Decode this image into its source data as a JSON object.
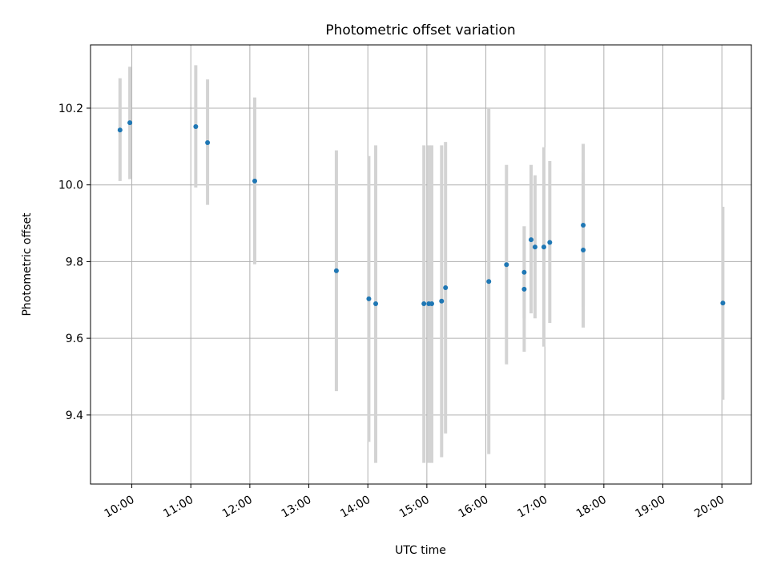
{
  "chart_data": {
    "type": "scatter",
    "title": "Photometric offset variation",
    "xlabel": "UTC time",
    "ylabel": "Photometric offset",
    "x_axis_type": "time",
    "xlim": [
      "09:18",
      "20:30"
    ],
    "ylim": [
      9.22,
      10.365
    ],
    "xticks": [
      "10:00",
      "11:00",
      "12:00",
      "13:00",
      "14:00",
      "15:00",
      "16:00",
      "17:00",
      "18:00",
      "19:00",
      "20:00"
    ],
    "yticks": [
      "9.4",
      "9.6",
      "9.8",
      "10.0",
      "10.2"
    ],
    "grid": true,
    "colors": {
      "point": "#1f77b4",
      "errorbar": "#d3d3d3",
      "grid": "#b0b0b0"
    },
    "points": [
      {
        "x": "09:48",
        "y": 10.143,
        "ylow": 10.01,
        "yhigh": 10.278
      },
      {
        "x": "09:58",
        "y": 10.162,
        "ylow": 10.015,
        "yhigh": 10.308
      },
      {
        "x": "11:05",
        "y": 10.152,
        "ylow": 9.993,
        "yhigh": 10.312
      },
      {
        "x": "11:17",
        "y": 10.11,
        "ylow": 9.948,
        "yhigh": 10.275
      },
      {
        "x": "12:05",
        "y": 10.01,
        "ylow": 9.793,
        "yhigh": 10.228
      },
      {
        "x": "13:28",
        "y": 9.776,
        "ylow": 9.462,
        "yhigh": 10.09
      },
      {
        "x": "14:01",
        "y": 9.703,
        "ylow": 9.33,
        "yhigh": 10.075
      },
      {
        "x": "14:08",
        "y": 9.69,
        "ylow": 9.275,
        "yhigh": 10.103
      },
      {
        "x": "14:57",
        "y": 9.69,
        "ylow": 9.275,
        "yhigh": 10.103
      },
      {
        "x": "15:02",
        "y": 9.69,
        "ylow": 9.275,
        "yhigh": 10.103
      },
      {
        "x": "15:05",
        "y": 9.69,
        "ylow": 9.275,
        "yhigh": 10.103
      },
      {
        "x": "15:15",
        "y": 9.697,
        "ylow": 9.29,
        "yhigh": 10.103
      },
      {
        "x": "15:19",
        "y": 9.732,
        "ylow": 9.352,
        "yhigh": 10.112
      },
      {
        "x": "16:03",
        "y": 9.748,
        "ylow": 9.298,
        "yhigh": 10.198
      },
      {
        "x": "16:21",
        "y": 9.792,
        "ylow": 9.532,
        "yhigh": 10.052
      },
      {
        "x": "16:39",
        "y": 9.772,
        "ylow": 9.652,
        "yhigh": 9.892
      },
      {
        "x": "16:39",
        "y": 9.728,
        "ylow": 9.565,
        "yhigh": 9.892
      },
      {
        "x": "16:46",
        "y": 9.857,
        "ylow": 9.665,
        "yhigh": 10.052
      },
      {
        "x": "16:50",
        "y": 9.838,
        "ylow": 9.652,
        "yhigh": 10.025
      },
      {
        "x": "16:59",
        "y": 9.838,
        "ylow": 9.578,
        "yhigh": 10.098
      },
      {
        "x": "17:05",
        "y": 9.85,
        "ylow": 9.64,
        "yhigh": 10.062
      },
      {
        "x": "17:39",
        "y": 9.895,
        "ylow": 9.682,
        "yhigh": 10.107
      },
      {
        "x": "17:39",
        "y": 9.83,
        "ylow": 9.628,
        "yhigh": 10.032
      },
      {
        "x": "20:01",
        "y": 9.692,
        "ylow": 9.44,
        "yhigh": 9.943
      }
    ]
  }
}
